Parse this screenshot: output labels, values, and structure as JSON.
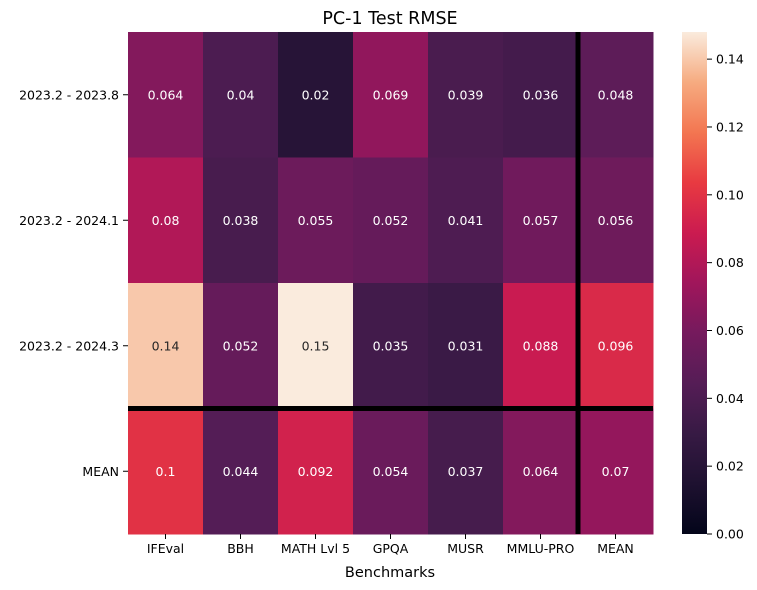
{
  "chart_data": {
    "type": "heatmap",
    "title": "PC-1 Test RMSE",
    "xlabel": "Benchmarks",
    "ylabel": "",
    "columns": [
      "IFEval",
      "BBH",
      "MATH Lvl 5",
      "GPQA",
      "MUSR",
      "MMLU-PRO",
      "MEAN"
    ],
    "rows": [
      "2023.2 - 2023.8",
      "2023.2 - 2024.1",
      "2023.2 - 2024.3",
      "MEAN"
    ],
    "values": [
      [
        0.064,
        0.04,
        0.02,
        0.069,
        0.039,
        0.036,
        0.048
      ],
      [
        0.08,
        0.038,
        0.055,
        0.052,
        0.041,
        0.057,
        0.056
      ],
      [
        0.14,
        0.052,
        0.15,
        0.035,
        0.031,
        0.088,
        0.096
      ],
      [
        0.1,
        0.044,
        0.092,
        0.054,
        0.037,
        0.064,
        0.07
      ]
    ],
    "labels": [
      [
        "0.064",
        "0.04",
        "0.02",
        "0.069",
        "0.039",
        "0.036",
        "0.048"
      ],
      [
        "0.08",
        "0.038",
        "0.055",
        "0.052",
        "0.041",
        "0.057",
        "0.056"
      ],
      [
        "0.14",
        "0.052",
        "0.15",
        "0.035",
        "0.031",
        "0.088",
        "0.096"
      ],
      [
        "0.1",
        "0.044",
        "0.092",
        "0.054",
        "0.037",
        "0.064",
        "0.07"
      ]
    ],
    "colorbar": {
      "vmin": 0,
      "vmax": 0.148,
      "ticks": [
        0.0,
        0.02,
        0.04,
        0.06,
        0.08,
        0.1,
        0.12,
        0.14
      ],
      "tick_labels": [
        "0.00",
        "0.02",
        "0.04",
        "0.06",
        "0.08",
        "0.10",
        "0.12",
        "0.14"
      ],
      "colormap": "rocket"
    },
    "separators": {
      "after_row": 3,
      "after_column": 6,
      "color": "#000000"
    }
  }
}
